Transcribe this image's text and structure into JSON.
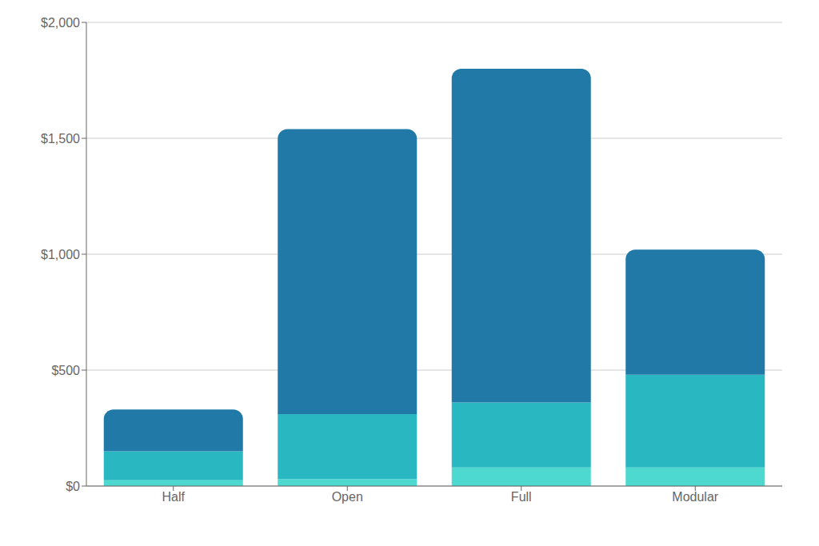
{
  "chart_data": {
    "type": "bar",
    "stacked": true,
    "grid": true,
    "categories": [
      "Half",
      "Open",
      "Full",
      "Modular"
    ],
    "series": [
      {
        "color": "#4dd9cf",
        "values": [
          25,
          30,
          80,
          80
        ]
      },
      {
        "color": "#29b8c2",
        "values": [
          125,
          280,
          280,
          400
        ]
      },
      {
        "color": "#2179a8",
        "values": [
          180,
          1230,
          1440,
          540
        ]
      }
    ],
    "ylim": [
      0,
      2000
    ],
    "yticks": [
      {
        "value": 0,
        "label": "$0"
      },
      {
        "value": 500,
        "label": "$500"
      },
      {
        "value": 1000,
        "label": "$1,000"
      },
      {
        "value": 1500,
        "label": "$1,500"
      },
      {
        "value": 2000,
        "label": "$2,000"
      }
    ]
  }
}
